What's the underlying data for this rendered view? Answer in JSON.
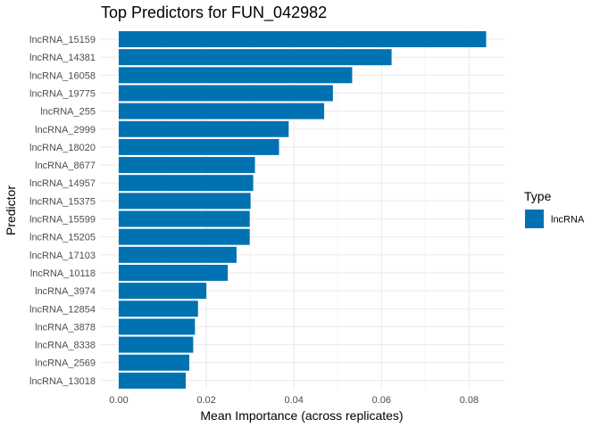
{
  "chart_data": {
    "type": "bar",
    "orientation": "horizontal",
    "title": "Top Predictors for FUN_042982",
    "xlabel": "Mean Importance (across replicates)",
    "ylabel": "Predictor",
    "xlim": [
      0,
      0.0875
    ],
    "x_ticks": [
      0.0,
      0.02,
      0.04,
      0.06,
      0.08
    ],
    "x_tick_labels": [
      "0.00",
      "0.02",
      "0.04",
      "0.06",
      "0.08"
    ],
    "grid": true,
    "legend": {
      "title": "Type",
      "placement": "right",
      "entries": [
        {
          "label": "lncRNA",
          "color": "#0072B2"
        }
      ]
    },
    "bar_color": "#0072B2",
    "categories": [
      "lncRNA_15159",
      "lncRNA_14381",
      "lncRNA_16058",
      "lncRNA_19775",
      "lncRNA_255",
      "lncRNA_2999",
      "lncRNA_18020",
      "lncRNA_8677",
      "lncRNA_14957",
      "lncRNA_15375",
      "lncRNA_15599",
      "lncRNA_15205",
      "lncRNA_17103",
      "lncRNA_10118",
      "lncRNA_3974",
      "lncRNA_12854",
      "lncRNA_3878",
      "lncRNA_8338",
      "lncRNA_2569",
      "lncRNA_13018"
    ],
    "values": [
      0.0839,
      0.0623,
      0.0533,
      0.0489,
      0.0469,
      0.0388,
      0.0366,
      0.0311,
      0.0307,
      0.0301,
      0.0299,
      0.0299,
      0.0269,
      0.0249,
      0.02,
      0.0181,
      0.0174,
      0.017,
      0.0161,
      0.0153
    ]
  }
}
